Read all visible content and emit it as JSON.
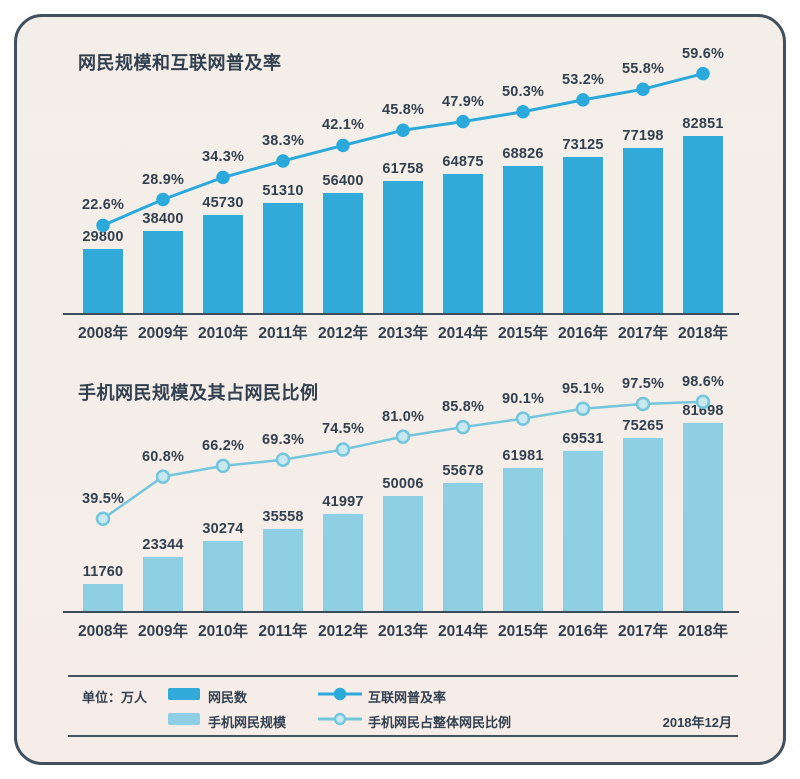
{
  "colors": {
    "bar_dark": "#31AADA",
    "bar_light": "#8ECFE3",
    "line_dark": "#2BA9DB",
    "line_light": "#74C6DC",
    "dot_light_fill": "#C9E8F1",
    "text": "#32404F",
    "frame_border": "#41505F",
    "axis": "#3C4C5A",
    "background": "#F4EDE7"
  },
  "legend": {
    "unit_label": "单位：万人",
    "date_label": "2018年12月",
    "items": [
      {
        "symbol": "bar-dark",
        "label": "网民数"
      },
      {
        "symbol": "bar-light",
        "label": "手机网民规模"
      },
      {
        "symbol": "line-dark",
        "label": "互联网普及率"
      },
      {
        "symbol": "line-light",
        "label": "手机网民占整体网民比例"
      }
    ]
  },
  "chart_data": [
    {
      "type": "bar",
      "title": "网民规模和互联网普及率",
      "categories": [
        "2008年",
        "2009年",
        "2010年",
        "2011年",
        "2012年",
        "2013年",
        "2014年",
        "2015年",
        "2016年",
        "2017年",
        "2018年"
      ],
      "series": [
        {
          "name": "网民数",
          "type": "bar",
          "unit": "万人",
          "values": [
            29800,
            38400,
            45730,
            51310,
            56400,
            61758,
            64875,
            68826,
            73125,
            77198,
            82851
          ]
        },
        {
          "name": "互联网普及率",
          "type": "line",
          "unit": "%",
          "values": [
            22.6,
            28.9,
            34.3,
            38.3,
            42.1,
            45.8,
            47.9,
            50.3,
            53.2,
            55.8,
            59.6
          ]
        }
      ],
      "xlabel": "",
      "ylabel": "",
      "grid": false,
      "legend_position": "bottom"
    },
    {
      "type": "bar",
      "title": "手机网民规模及其占网民比例",
      "categories": [
        "2008年",
        "2009年",
        "2010年",
        "2011年",
        "2012年",
        "2013年",
        "2014年",
        "2015年",
        "2016年",
        "2017年",
        "2018年"
      ],
      "series": [
        {
          "name": "手机网民规模",
          "type": "bar",
          "unit": "万人",
          "values": [
            11760,
            23344,
            30274,
            35558,
            41997,
            50006,
            55678,
            61981,
            69531,
            75265,
            81698
          ]
        },
        {
          "name": "手机网民占整体网民比例",
          "type": "line",
          "unit": "%",
          "values": [
            39.5,
            60.8,
            66.2,
            69.3,
            74.5,
            81.0,
            85.8,
            90.1,
            95.1,
            97.5,
            98.6
          ]
        }
      ],
      "xlabel": "",
      "ylabel": "",
      "grid": false,
      "legend_position": "bottom"
    }
  ]
}
